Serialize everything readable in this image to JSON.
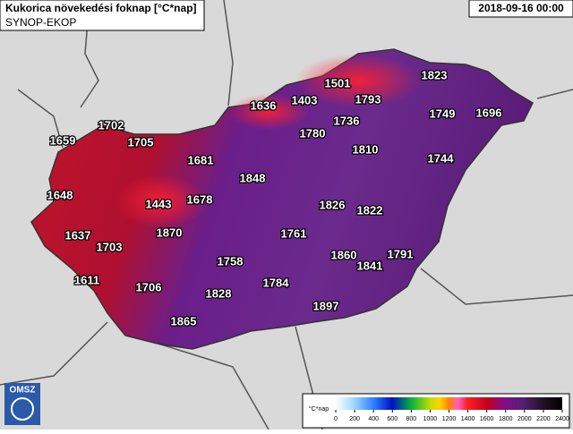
{
  "header": {
    "title": "Kukorica növekedési foknap [°C*nap]",
    "source": "SYNOP-EKOP",
    "timestamp": "2018-09-16 00:00"
  },
  "stations": [
    1501,
    1823,
    1636,
    1403,
    1793,
    1736,
    1749,
    1696,
    1702,
    1780,
    1659,
    1705,
    1810,
    1744,
    1681,
    1848,
    1648,
    1443,
    1678,
    1826,
    1822,
    1637,
    1870,
    1761,
    1703,
    1860,
    1791,
    1841,
    1758,
    1611,
    1784,
    1706,
    1828,
    1897,
    1865
  ],
  "legend": {
    "unit": "°C*nap",
    "ticks": [
      0,
      200,
      400,
      600,
      800,
      1000,
      1200,
      1400,
      1600,
      1800,
      2000,
      2200,
      2400
    ]
  },
  "logo": {
    "text": "OMSZ"
  }
}
